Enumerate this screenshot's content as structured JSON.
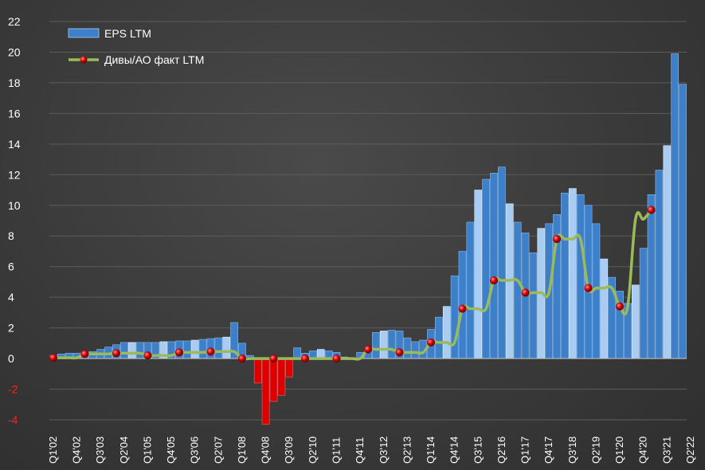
{
  "chart_data": {
    "type": "bar",
    "ylim": [
      -4,
      22
    ],
    "yticks": [
      -4,
      -2,
      0,
      2,
      4,
      6,
      8,
      10,
      12,
      14,
      16,
      18,
      20,
      22
    ],
    "grid": true,
    "legend_position": "top-left",
    "colors": {
      "bar_dark": "#3d7fc9",
      "bar_light": "#a9cdf2",
      "bar_negative": "#dd0000",
      "line": "#9bbb59",
      "marker": "#cc0000",
      "background": "#3c3c3c"
    },
    "x_tick_labels": [
      "Q1'02",
      "Q4'02",
      "Q3'03",
      "Q2'04",
      "Q1'05",
      "Q4'05",
      "Q3'06",
      "Q2'07",
      "Q1'08",
      "Q4'08",
      "Q3'09",
      "Q2'10",
      "Q1'11",
      "Q4'11",
      "Q3'12",
      "Q2'13",
      "Q1'14",
      "Q4'14",
      "Q3'15",
      "Q2'16",
      "Q1'17",
      "Q4'17",
      "Q3'18",
      "Q2'19",
      "Q1'20",
      "Q4'20",
      "Q3'21",
      "Q2'22"
    ],
    "series": [
      {
        "name": "EPS LTM",
        "type": "bar",
        "values": [
          0.2,
          0.3,
          0.35,
          0.35,
          0.4,
          0.45,
          0.6,
          0.75,
          0.9,
          1.05,
          1.05,
          1.05,
          1.05,
          1.05,
          1.1,
          1.1,
          1.15,
          1.15,
          1.2,
          1.25,
          1.3,
          1.35,
          1.4,
          2.35,
          1.0,
          0.2,
          -1.6,
          -4.3,
          -2.8,
          -2.4,
          -1.2,
          0.7,
          0.35,
          0.5,
          0.6,
          0.5,
          0.4,
          0.1,
          0.05,
          0.4,
          0.6,
          1.7,
          1.8,
          1.85,
          1.8,
          1.35,
          1.1,
          1.2,
          1.9,
          2.7,
          3.4,
          5.4,
          7.0,
          8.9,
          11.0,
          11.7,
          12.1,
          12.5,
          10.1,
          8.9,
          8.2,
          6.9,
          8.5,
          8.8,
          9.4,
          10.8,
          11.1,
          10.7,
          10.0,
          8.8,
          6.5,
          5.3,
          4.4,
          3.6,
          4.8,
          7.2,
          10.7,
          12.3,
          13.9,
          19.9,
          17.9
        ],
        "highlight": [
          "dark",
          "dark",
          "dark",
          "dark",
          "dark",
          "dark",
          "dark",
          "dark",
          "dark",
          "dark",
          "light",
          "dark",
          "dark",
          "dark",
          "light",
          "dark",
          "dark",
          "dark",
          "light",
          "dark",
          "dark",
          "dark",
          "light",
          "dark",
          "dark",
          "dark",
          "dark",
          "dark",
          "dark",
          "dark",
          "dark",
          "dark",
          "dark",
          "dark",
          "light",
          "dark",
          "dark",
          "dark",
          "dark",
          "dark",
          "dark",
          "dark",
          "light",
          "dark",
          "dark",
          "dark",
          "dark",
          "dark",
          "dark",
          "dark",
          "light",
          "dark",
          "dark",
          "dark",
          "light",
          "dark",
          "dark",
          "dark",
          "light",
          "dark",
          "dark",
          "dark",
          "light",
          "dark",
          "dark",
          "dark",
          "light",
          "dark",
          "dark",
          "dark",
          "light",
          "dark",
          "dark",
          "dark",
          "light",
          "dark",
          "dark",
          "dark",
          "light",
          "dark",
          "dark"
        ]
      },
      {
        "name": "Дивы/АО факт LTM",
        "type": "line",
        "values": [
          0.05,
          0.05,
          0.05,
          0.05,
          0.3,
          0.3,
          0.3,
          0.3,
          0.35,
          0.35,
          0.35,
          0.35,
          0.2,
          0.2,
          0.2,
          0.2,
          0.4,
          0.4,
          0.4,
          0.4,
          0.45,
          0.45,
          0.45,
          0.45,
          0.0,
          0.0,
          0.0,
          0.0,
          0.0,
          0.0,
          0.0,
          0.0,
          0.0,
          0.0,
          0.0,
          0.0,
          0.0,
          0.0,
          0.0,
          0.0,
          0.6,
          0.6,
          0.6,
          0.6,
          0.4,
          0.4,
          0.4,
          0.4,
          1.05,
          1.05,
          1.05,
          1.05,
          3.25,
          3.25,
          3.25,
          3.25,
          5.1,
          5.1,
          5.1,
          5.1,
          4.3,
          4.3,
          4.3,
          4.3,
          7.8,
          7.8,
          7.8,
          7.8,
          4.6,
          4.6,
          4.6,
          4.6,
          3.4,
          3.4,
          9.1,
          9.1,
          9.7
        ],
        "markers_every": 4
      }
    ]
  }
}
